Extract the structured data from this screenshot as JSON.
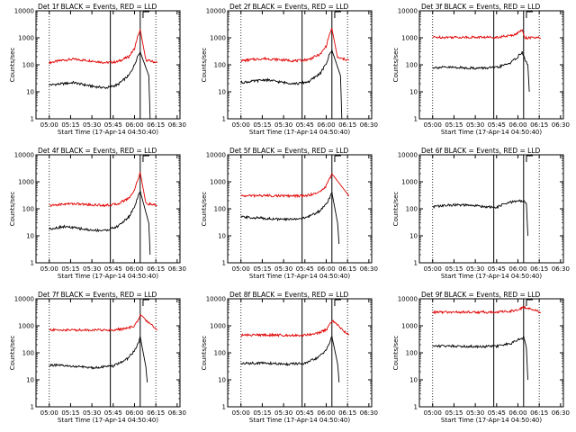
{
  "page": {
    "background": "#ffffff",
    "axis_color": "#000000",
    "events_color": "#000000",
    "lld_color": "#e00000"
  },
  "chart_data": [
    {
      "type": "line",
      "title": "Det 1f BLACK = Events, RED = LLD",
      "xlabel": "Start Time (17-Apr-14 04:50:40)",
      "ylabel": "Counts/sec",
      "yscale": "log",
      "ylim": [
        1,
        10000
      ],
      "y_ticks": [
        "1",
        "10",
        "100",
        "1000",
        "10000"
      ],
      "xlim": [
        "04:50:40",
        "06:32:00"
      ],
      "x_ticks": [
        "05:00",
        "05:15",
        "05:30",
        "05:45",
        "06:00",
        "06:15",
        "06:30"
      ],
      "vlines_dotted": [
        "05:00",
        "06:15"
      ],
      "vlines_solid": [
        "05:43",
        "06:04"
      ],
      "flag_marker": "06:06",
      "series": [
        {
          "id": "lld",
          "color": "#e00000",
          "x": [
            "05:00",
            "05:10",
            "05:17",
            "05:30",
            "05:40",
            "05:48",
            "05:56",
            "06:00",
            "06:02",
            "06:04",
            "06:08",
            "06:16"
          ],
          "values": [
            120,
            150,
            160,
            140,
            120,
            130,
            200,
            400,
            1000,
            2000,
            150,
            120
          ]
        },
        {
          "id": "events",
          "color": "#000000",
          "x": [
            "05:00",
            "05:10",
            "05:17",
            "05:30",
            "05:40",
            "05:48",
            "05:56",
            "06:00",
            "06:02",
            "06:04",
            "06:10",
            "06:11"
          ],
          "values": [
            18,
            20,
            22,
            16,
            14,
            18,
            40,
            100,
            200,
            300,
            40,
            1
          ]
        }
      ]
    },
    {
      "type": "line",
      "title": "Det 2f BLACK = Events, RED = LLD",
      "xlabel": "Start Time (17-Apr-14 04:50:40)",
      "ylabel": "Counts/sec",
      "yscale": "log",
      "ylim": [
        1,
        10000
      ],
      "y_ticks": [
        "1",
        "10",
        "100",
        "1000",
        "10000"
      ],
      "xlim": [
        "04:50:40",
        "06:32:00"
      ],
      "x_ticks": [
        "05:00",
        "05:15",
        "05:30",
        "05:45",
        "06:00",
        "06:15",
        "06:30"
      ],
      "vlines_dotted": [
        "05:00",
        "06:15"
      ],
      "vlines_solid": [
        "05:43",
        "06:04"
      ],
      "flag_marker": "06:06",
      "series": [
        {
          "id": "lld",
          "color": "#e00000",
          "x": [
            "05:00",
            "05:10",
            "05:17",
            "05:30",
            "05:40",
            "05:48",
            "05:56",
            "06:00",
            "06:02",
            "06:04",
            "06:08",
            "06:16"
          ],
          "values": [
            140,
            160,
            170,
            150,
            140,
            160,
            250,
            500,
            1200,
            2200,
            180,
            150
          ]
        },
        {
          "id": "events",
          "color": "#000000",
          "x": [
            "05:00",
            "05:10",
            "05:17",
            "05:30",
            "05:40",
            "05:48",
            "05:56",
            "06:00",
            "06:02",
            "06:04",
            "06:10",
            "06:11"
          ],
          "values": [
            22,
            25,
            28,
            22,
            20,
            24,
            50,
            110,
            220,
            350,
            40,
            1
          ]
        }
      ]
    },
    {
      "type": "line",
      "title": "Det 3f BLACK = Events, RED = LLD",
      "xlabel": "Start Time (17-Apr-14 04:50:40)",
      "ylabel": "Counts/sec",
      "yscale": "log",
      "ylim": [
        1,
        10000
      ],
      "y_ticks": [
        "1",
        "10",
        "100",
        "1000",
        "10000"
      ],
      "xlim": [
        "04:50:40",
        "06:32:00"
      ],
      "x_ticks": [
        "05:00",
        "05:15",
        "05:30",
        "05:45",
        "06:00",
        "06:15",
        "06:30"
      ],
      "vlines_dotted": [
        "05:00",
        "06:15"
      ],
      "vlines_solid": [
        "05:43",
        "06:04"
      ],
      "flag_marker": "06:06",
      "series": [
        {
          "id": "lld",
          "color": "#e00000",
          "x": [
            "05:00",
            "05:15",
            "05:30",
            "05:45",
            "05:55",
            "06:00",
            "06:03",
            "06:05",
            "06:16"
          ],
          "values": [
            1050,
            1050,
            1050,
            1050,
            1200,
            1500,
            2000,
            1000,
            1000
          ]
        },
        {
          "id": "events",
          "color": "#000000",
          "x": [
            "05:00",
            "05:15",
            "05:30",
            "05:45",
            "05:55",
            "06:00",
            "06:03",
            "06:05",
            "06:07",
            "06:08"
          ],
          "values": [
            80,
            80,
            75,
            78,
            120,
            200,
            300,
            150,
            100,
            10
          ]
        }
      ]
    },
    {
      "type": "line",
      "title": "Det 4f BLACK = Events, RED = LLD",
      "xlabel": "Start Time (17-Apr-14 04:50:40)",
      "ylabel": "Counts/sec",
      "yscale": "log",
      "ylim": [
        1,
        10000
      ],
      "y_ticks": [
        "1",
        "10",
        "100",
        "1000",
        "10000"
      ],
      "xlim": [
        "04:50:40",
        "06:32:00"
      ],
      "x_ticks": [
        "05:00",
        "05:15",
        "05:30",
        "05:45",
        "06:00",
        "06:15",
        "06:30"
      ],
      "vlines_dotted": [
        "05:00",
        "06:15"
      ],
      "vlines_solid": [
        "05:43",
        "06:04"
      ],
      "flag_marker": "06:06",
      "series": [
        {
          "id": "lld",
          "color": "#e00000",
          "x": [
            "05:00",
            "05:10",
            "05:17",
            "05:30",
            "05:40",
            "05:48",
            "05:56",
            "06:00",
            "06:02",
            "06:04",
            "06:08",
            "06:16"
          ],
          "values": [
            130,
            150,
            155,
            140,
            135,
            150,
            250,
            500,
            1100,
            2200,
            160,
            130
          ]
        },
        {
          "id": "events",
          "color": "#000000",
          "x": [
            "05:00",
            "05:10",
            "05:17",
            "05:30",
            "05:40",
            "05:48",
            "05:56",
            "06:00",
            "06:02",
            "06:04",
            "06:10",
            "06:11"
          ],
          "values": [
            18,
            22,
            20,
            16,
            16,
            22,
            50,
            120,
            250,
            450,
            30,
            2
          ]
        }
      ]
    },
    {
      "type": "line",
      "title": "Det 5f BLACK = Events, RED = LLD",
      "xlabel": "Start Time (17-Apr-14 04:50:40)",
      "ylabel": "Counts/sec",
      "yscale": "log",
      "ylim": [
        1,
        10000
      ],
      "y_ticks": [
        "1",
        "10",
        "100",
        "1000",
        "10000"
      ],
      "xlim": [
        "04:50:40",
        "06:32:00"
      ],
      "x_ticks": [
        "05:00",
        "05:15",
        "05:30",
        "05:45",
        "06:00",
        "06:15",
        "06:30"
      ],
      "vlines_dotted": [
        "05:00",
        "06:15"
      ],
      "vlines_solid": [
        "05:43",
        "06:04"
      ],
      "flag_marker": "06:06",
      "series": [
        {
          "id": "lld",
          "color": "#e00000",
          "x": [
            "05:00",
            "05:15",
            "05:30",
            "05:45",
            "05:55",
            "06:00",
            "06:03",
            "06:04",
            "06:16"
          ],
          "values": [
            300,
            310,
            300,
            300,
            400,
            700,
            1500,
            2000,
            300
          ]
        },
        {
          "id": "events",
          "color": "#000000",
          "x": [
            "05:00",
            "05:15",
            "05:30",
            "05:45",
            "05:55",
            "06:00",
            "06:03",
            "06:04",
            "06:08",
            "06:09"
          ],
          "values": [
            50,
            45,
            40,
            45,
            80,
            150,
            300,
            400,
            30,
            5
          ]
        }
      ]
    },
    {
      "type": "line",
      "title": "Det 6f BLACK = Events, RED = LLD",
      "xlabel": "Start Time (17-Apr-14 04:50:40)",
      "ylabel": "Counts/sec",
      "yscale": "log",
      "ylim": [
        1,
        10000
      ],
      "y_ticks": [
        "1",
        "10",
        "100",
        "1000",
        "10000"
      ],
      "xlim": [
        "04:50:40",
        "06:32:00"
      ],
      "x_ticks": [
        "05:00",
        "05:15",
        "05:30",
        "05:45",
        "06:00",
        "06:15",
        "06:30"
      ],
      "vlines_dotted": [
        "05:00",
        "06:15"
      ],
      "vlines_solid": [
        "05:43",
        "06:04"
      ],
      "flag_marker": "06:06",
      "series": [
        {
          "id": "events",
          "color": "#000000",
          "x": [
            "05:00",
            "05:15",
            "05:30",
            "05:45",
            "05:50",
            "06:00",
            "06:03",
            "06:05",
            "06:06",
            "06:07"
          ],
          "values": [
            120,
            140,
            130,
            110,
            150,
            200,
            190,
            180,
            160,
            10
          ]
        }
      ]
    },
    {
      "type": "line",
      "title": "Det 7f BLACK = Events, RED = LLD",
      "xlabel": "Start Time (17-Apr-14 04:50:40)",
      "ylabel": "Counts/sec",
      "yscale": "log",
      "ylim": [
        1,
        10000
      ],
      "y_ticks": [
        "1",
        "10",
        "100",
        "1000",
        "10000"
      ],
      "xlim": [
        "04:50:40",
        "06:32:00"
      ],
      "x_ticks": [
        "05:00",
        "05:15",
        "05:30",
        "05:45",
        "06:00",
        "06:15",
        "06:30"
      ],
      "vlines_dotted": [
        "05:00",
        "06:15"
      ],
      "vlines_solid": [
        "05:43",
        "06:04"
      ],
      "flag_marker": "06:06",
      "series": [
        {
          "id": "lld",
          "color": "#e00000",
          "x": [
            "05:00",
            "05:15",
            "05:30",
            "05:45",
            "05:55",
            "06:00",
            "06:03",
            "06:04",
            "06:16"
          ],
          "values": [
            700,
            700,
            700,
            700,
            800,
            1000,
            1800,
            2500,
            700
          ]
        },
        {
          "id": "events",
          "color": "#000000",
          "x": [
            "05:00",
            "05:15",
            "05:30",
            "05:45",
            "05:55",
            "06:00",
            "06:03",
            "06:04",
            "06:08",
            "06:09"
          ],
          "values": [
            35,
            32,
            28,
            32,
            60,
            120,
            250,
            400,
            30,
            8
          ]
        }
      ]
    },
    {
      "type": "line",
      "title": "Det 8f BLACK = Events, RED = LLD",
      "xlabel": "Start Time (17-Apr-14 04:50:40)",
      "ylabel": "Counts/sec",
      "yscale": "log",
      "ylim": [
        1,
        10000
      ],
      "y_ticks": [
        "1",
        "10",
        "100",
        "1000",
        "10000"
      ],
      "xlim": [
        "04:50:40",
        "06:32:00"
      ],
      "x_ticks": [
        "05:00",
        "05:15",
        "05:30",
        "05:45",
        "06:00",
        "06:15",
        "06:30"
      ],
      "vlines_dotted": [
        "05:00",
        "06:15"
      ],
      "vlines_solid": [
        "05:43",
        "06:04"
      ],
      "flag_marker": "06:06",
      "series": [
        {
          "id": "lld",
          "color": "#e00000",
          "x": [
            "05:00",
            "05:15",
            "05:30",
            "05:45",
            "05:55",
            "06:00",
            "06:03",
            "06:04",
            "06:16"
          ],
          "values": [
            450,
            460,
            450,
            450,
            550,
            700,
            1200,
            1600,
            450
          ]
        },
        {
          "id": "events",
          "color": "#000000",
          "x": [
            "05:00",
            "05:15",
            "05:30",
            "05:45",
            "05:55",
            "06:00",
            "06:03",
            "06:04",
            "06:08",
            "06:09"
          ],
          "values": [
            40,
            42,
            38,
            40,
            70,
            130,
            280,
            400,
            40,
            8
          ]
        }
      ]
    },
    {
      "type": "line",
      "title": "Det 9f BLACK = Events, RED = LLD",
      "xlabel": "Start Time (17-Apr-14 04:50:40)",
      "ylabel": "Counts/sec",
      "yscale": "log",
      "ylim": [
        1,
        10000
      ],
      "y_ticks": [
        "1",
        "10",
        "100",
        "1000",
        "10000"
      ],
      "xlim": [
        "04:50:40",
        "06:32:00"
      ],
      "x_ticks": [
        "05:00",
        "05:15",
        "05:30",
        "05:45",
        "06:00",
        "06:15",
        "06:30"
      ],
      "vlines_dotted": [
        "05:00",
        "06:15"
      ],
      "vlines_solid": [
        "05:43",
        "06:04"
      ],
      "flag_marker": "06:06",
      "series": [
        {
          "id": "lld",
          "color": "#e00000",
          "x": [
            "05:00",
            "05:15",
            "05:30",
            "05:45",
            "05:55",
            "06:00",
            "06:03",
            "06:04",
            "06:16"
          ],
          "values": [
            3200,
            3200,
            3200,
            3200,
            3500,
            4000,
            4500,
            5000,
            3200
          ]
        },
        {
          "id": "events",
          "color": "#000000",
          "x": [
            "05:00",
            "05:15",
            "05:30",
            "05:45",
            "05:55",
            "06:00",
            "06:03",
            "06:04",
            "06:06",
            "06:07"
          ],
          "values": [
            180,
            180,
            170,
            175,
            220,
            300,
            350,
            400,
            150,
            10
          ]
        }
      ]
    }
  ]
}
